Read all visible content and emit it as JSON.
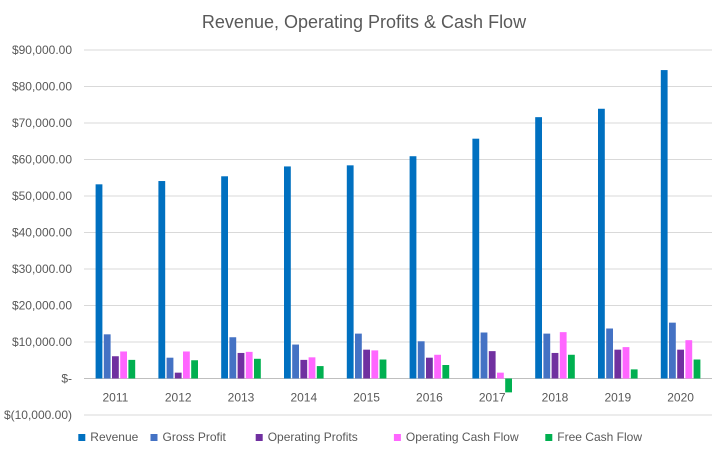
{
  "chart_data": {
    "type": "bar",
    "title": "Revenue, Operating Profits & Cash Flow",
    "xlabel": "",
    "ylabel": "",
    "categories": [
      "2011",
      "2012",
      "2013",
      "2014",
      "2015",
      "2016",
      "2017",
      "2018",
      "2019",
      "2020"
    ],
    "ylim": [
      -10000,
      90000
    ],
    "yticks": [
      -10000,
      0,
      10000,
      20000,
      30000,
      40000,
      50000,
      60000,
      70000,
      80000,
      90000
    ],
    "ytick_labels": [
      "$(10,000.00)",
      "$-",
      "$10,000.00",
      "$20,000.00",
      "$30,000.00",
      "$40,000.00",
      "$50,000.00",
      "$60,000.00",
      "$70,000.00",
      "$80,000.00",
      "$90,000.00"
    ],
    "grid": true,
    "legend_position": "bottom",
    "series": [
      {
        "name": "Revenue",
        "color": "#0070C0",
        "values": [
          53200,
          54100,
          55400,
          58100,
          58400,
          60900,
          65700,
          71600,
          73900,
          84500
        ]
      },
      {
        "name": "Gross Profit",
        "color": "#4472C4",
        "values": [
          12100,
          5700,
          11300,
          9300,
          12300,
          10200,
          12600,
          12300,
          13700,
          15300
        ]
      },
      {
        "name": "Operating Profits",
        "color": "#7030A0",
        "values": [
          6100,
          1600,
          7000,
          5100,
          7900,
          5700,
          7500,
          7000,
          7900,
          7900
        ]
      },
      {
        "name": "Operating Cash Flow",
        "color": "#FF66FF",
        "values": [
          7400,
          7400,
          7300,
          5800,
          7700,
          6500,
          1600,
          12700,
          8600,
          10500
        ]
      },
      {
        "name": "Free Cash Flow",
        "color": "#00B050",
        "values": [
          5100,
          5000,
          5400,
          3400,
          5200,
          3700,
          -3800,
          6500,
          2500,
          5200
        ]
      }
    ]
  }
}
